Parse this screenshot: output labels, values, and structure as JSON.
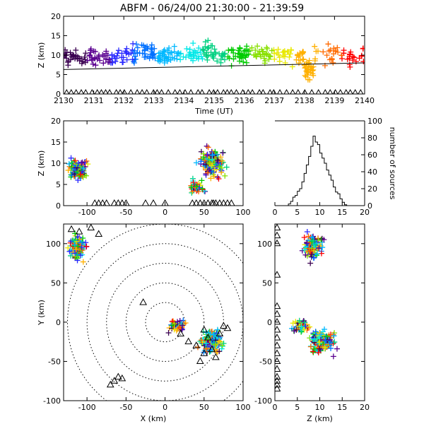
{
  "title": "ABFM - 06/24/00 21:30:00 - 21:39:59",
  "colors": {
    "rainbow": [
      "#3a0050",
      "#5a0090",
      "#2a2aff",
      "#0070ff",
      "#00b8ff",
      "#00e8e8",
      "#00d080",
      "#00cc00",
      "#88e000",
      "#e8e800",
      "#ffb000",
      "#ff6a00",
      "#ff0000"
    ],
    "marker_black": "#000000"
  },
  "chart_data": [
    {
      "id": "time-height",
      "type": "scatter",
      "xlabel": "Time (UT)",
      "ylabel": "Z (km)",
      "xlim": [
        2130,
        2140
      ],
      "ylim": [
        0,
        20
      ],
      "xticks": [
        "2130",
        "2131",
        "2132",
        "2133",
        "2134",
        "2135",
        "2136",
        "2137",
        "2138",
        "2139",
        "2140"
      ],
      "yticks": [
        "0",
        "5",
        "10",
        "15",
        "20"
      ],
      "marker": "+",
      "color_by": "time",
      "trend_line": [
        [
          2130,
          6.3
        ],
        [
          2140,
          8.0
        ]
      ],
      "station_markers": {
        "marker": "triangle",
        "z": 0,
        "x_ranges": [
          [
            2130.1,
            2140
          ]
        ]
      },
      "clusters": [
        {
          "t_range": [
            2130.0,
            2131.0
          ],
          "z_center": 9.5,
          "z_spread": 3.5,
          "count": 40
        },
        {
          "t_range": [
            2131.0,
            2132.0
          ],
          "z_center": 9.5,
          "z_spread": 4.0,
          "count": 40
        },
        {
          "t_range": [
            2132.0,
            2133.0
          ],
          "z_center": 10.5,
          "z_spread": 4.0,
          "count": 45
        },
        {
          "t_range": [
            2133.0,
            2134.0
          ],
          "z_center": 10.0,
          "z_spread": 4.0,
          "count": 45
        },
        {
          "t_range": [
            2134.0,
            2135.0
          ],
          "z_center": 10.5,
          "z_spread": 4.0,
          "count": 45
        },
        {
          "t_range": [
            2135.0,
            2136.0
          ],
          "z_center": 10.0,
          "z_spread": 4.0,
          "count": 40
        },
        {
          "t_range": [
            2136.0,
            2137.0
          ],
          "z_center": 10.5,
          "z_spread": 4.0,
          "count": 40
        },
        {
          "t_range": [
            2137.0,
            2138.0
          ],
          "z_center": 10.0,
          "z_spread": 4.0,
          "count": 35
        },
        {
          "t_range": [
            2138.0,
            2138.3
          ],
          "z_center": 6.0,
          "z_spread": 4.0,
          "count": 30
        },
        {
          "t_range": [
            2138.3,
            2140.0
          ],
          "z_center": 10.0,
          "z_spread": 4.0,
          "count": 45
        }
      ]
    },
    {
      "id": "x-z",
      "type": "scatter",
      "ylabel": "Z (km)",
      "xlim": [
        -130,
        100
      ],
      "ylim": [
        0,
        20
      ],
      "xticks": [
        "-100",
        "-50",
        "0",
        "50",
        "100"
      ],
      "yticks": [
        "0",
        "5",
        "10",
        "15",
        "20"
      ],
      "marker": "+",
      "clusters": [
        {
          "x_center": -112,
          "x_spread": 18,
          "z_center": 8.5,
          "z_spread": 4.0,
          "count": 110
        },
        {
          "x_center": 60,
          "x_spread": 25,
          "z_center": 10.0,
          "z_spread": 5.0,
          "count": 160
        },
        {
          "x_center": 40,
          "x_spread": 15,
          "z_center": 4.5,
          "z_spread": 2.5,
          "count": 40
        }
      ],
      "station_x": [
        -90,
        -85,
        -80,
        -75,
        -65,
        -60,
        -55,
        -50,
        -25,
        -15,
        0,
        35,
        40,
        45,
        50,
        55,
        60,
        62,
        65,
        70,
        75,
        80,
        85
      ]
    },
    {
      "id": "altitude-histogram",
      "type": "bar",
      "xlabel": "",
      "ylabel": "number of sources",
      "xlim": [
        0,
        20
      ],
      "ylim": [
        0,
        100
      ],
      "xticks": [
        "0",
        "5",
        "10",
        "15",
        "20"
      ],
      "yticks": [
        "0",
        "20",
        "40",
        "60",
        "80",
        "100"
      ],
      "bin_edges_km": [
        3,
        3.5,
        4,
        4.5,
        5,
        5.5,
        6,
        6.5,
        7,
        7.5,
        8,
        8.5,
        9,
        9.5,
        10,
        10.5,
        11,
        11.5,
        12,
        12.5,
        13,
        13.5,
        14,
        14.5,
        15,
        15.5,
        16
      ],
      "values": [
        2,
        5,
        10,
        12,
        17,
        20,
        28,
        38,
        48,
        58,
        70,
        82,
        75,
        72,
        62,
        56,
        50,
        42,
        36,
        30,
        22,
        16,
        14,
        8,
        4,
        1
      ]
    },
    {
      "id": "plan-view",
      "type": "scatter",
      "xlabel": "X (km)",
      "ylabel": "Y (km)",
      "xlim": [
        -130,
        100
      ],
      "ylim": [
        -100,
        125
      ],
      "xticks": [
        "-100",
        "-50",
        "0",
        "50",
        "100"
      ],
      "yticks": [
        "-100",
        "-50",
        "0",
        "50",
        "100"
      ],
      "marker": "+",
      "range_rings_km": [
        25,
        50,
        75,
        100,
        125
      ],
      "clusters": [
        {
          "x_center": -112,
          "x_spread": 15,
          "y_center": 95,
          "y_spread": 25,
          "count": 110
        },
        {
          "x_center": 60,
          "x_spread": 22,
          "y_center": -25,
          "y_spread": 20,
          "count": 170
        },
        {
          "x_center": 15,
          "x_spread": 18,
          "y_center": -5,
          "y_spread": 12,
          "count": 45
        }
      ],
      "stations": [
        [
          -120,
          118
        ],
        [
          -110,
          115
        ],
        [
          -95,
          120
        ],
        [
          -85,
          112
        ],
        [
          -28,
          25
        ],
        [
          -60,
          -70
        ],
        [
          -65,
          -75
        ],
        [
          -70,
          -80
        ],
        [
          -55,
          -72
        ],
        [
          20,
          -15
        ],
        [
          30,
          -25
        ],
        [
          40,
          -30
        ],
        [
          50,
          -10
        ],
        [
          55,
          -20
        ],
        [
          60,
          -35
        ],
        [
          70,
          -15
        ],
        [
          75,
          -5
        ],
        [
          80,
          -8
        ],
        [
          65,
          -45
        ],
        [
          50,
          -40
        ],
        [
          45,
          -50
        ]
      ]
    },
    {
      "id": "z-y",
      "type": "scatter",
      "xlabel": "Z (km)",
      "xlim": [
        0,
        20
      ],
      "ylim": [
        -100,
        125
      ],
      "xticks": [
        "0",
        "5",
        "10",
        "15",
        "20"
      ],
      "yticks": [
        "-100",
        "-50",
        "0",
        "50",
        "100"
      ],
      "marker": "+",
      "clusters": [
        {
          "z_center": 8.5,
          "z_spread": 3.5,
          "y_center": 95,
          "y_spread": 25,
          "count": 110
        },
        {
          "z_center": 10.5,
          "z_spread": 4.0,
          "y_center": -25,
          "y_spread": 22,
          "count": 170
        },
        {
          "z_center": 6.0,
          "z_spread": 3.0,
          "y_center": -5,
          "y_spread": 12,
          "count": 45
        }
      ],
      "station_y": [
        120,
        110,
        100,
        60,
        20,
        10,
        0,
        -10,
        -20,
        -30,
        -40,
        -50,
        -60,
        -70,
        -75,
        -80,
        -85
      ]
    }
  ]
}
